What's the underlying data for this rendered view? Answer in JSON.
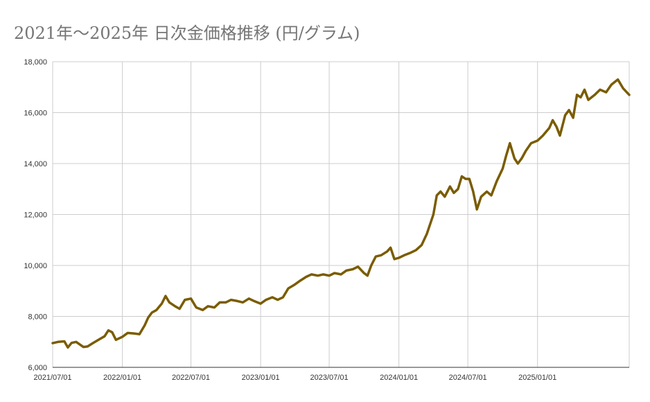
{
  "chart_data": {
    "type": "line",
    "title": "2021年〜2025年 日次金価格推移 (円/グラム)",
    "xlabel": "",
    "ylabel": "",
    "ylim": [
      6000,
      18000
    ],
    "y_ticks": [
      {
        "value": 6000,
        "label": "6,000"
      },
      {
        "value": 8000,
        "label": "8,000"
      },
      {
        "value": 10000,
        "label": "10,000"
      },
      {
        "value": 12000,
        "label": "12,000"
      },
      {
        "value": 14000,
        "label": "14,000"
      },
      {
        "value": 16000,
        "label": "16,000"
      },
      {
        "value": 18000,
        "label": "18,000"
      }
    ],
    "x_range": [
      "2021-07-01",
      "2025-08-31"
    ],
    "x_ticks": [
      {
        "value": "2021-07-01",
        "label": "2021/07/01"
      },
      {
        "value": "2022-01-01",
        "label": "2022/01/01"
      },
      {
        "value": "2022-07-01",
        "label": "2022/07/01"
      },
      {
        "value": "2023-01-01",
        "label": "2023/01/01"
      },
      {
        "value": "2023-07-01",
        "label": "2023/07/01"
      },
      {
        "value": "2024-01-01",
        "label": "2024/01/01"
      },
      {
        "value": "2024-07-01",
        "label": "2024/07/01"
      },
      {
        "value": "2025-01-01",
        "label": "2025/01/01"
      }
    ],
    "grid": true,
    "legend": "none",
    "series": [
      {
        "color": "#7a5c00",
        "points": [
          [
            "2021-07-01",
            6950
          ],
          [
            "2021-07-15",
            7000
          ],
          [
            "2021-08-01",
            7020
          ],
          [
            "2021-08-10",
            6780
          ],
          [
            "2021-08-20",
            6960
          ],
          [
            "2021-09-01",
            7000
          ],
          [
            "2021-09-20",
            6800
          ],
          [
            "2021-10-01",
            6820
          ],
          [
            "2021-10-15",
            6950
          ],
          [
            "2021-11-01",
            7100
          ],
          [
            "2021-11-15",
            7220
          ],
          [
            "2021-11-25",
            7450
          ],
          [
            "2021-12-05",
            7380
          ],
          [
            "2021-12-15",
            7080
          ],
          [
            "2022-01-01",
            7200
          ],
          [
            "2022-01-15",
            7350
          ],
          [
            "2022-02-01",
            7330
          ],
          [
            "2022-02-15",
            7300
          ],
          [
            "2022-03-01",
            7650
          ],
          [
            "2022-03-10",
            7950
          ],
          [
            "2022-03-20",
            8150
          ],
          [
            "2022-04-01",
            8250
          ],
          [
            "2022-04-15",
            8500
          ],
          [
            "2022-04-25",
            8800
          ],
          [
            "2022-05-05",
            8550
          ],
          [
            "2022-05-20",
            8400
          ],
          [
            "2022-06-01",
            8300
          ],
          [
            "2022-06-15",
            8650
          ],
          [
            "2022-07-01",
            8700
          ],
          [
            "2022-07-15",
            8350
          ],
          [
            "2022-08-01",
            8250
          ],
          [
            "2022-08-15",
            8400
          ],
          [
            "2022-09-01",
            8350
          ],
          [
            "2022-09-15",
            8550
          ],
          [
            "2022-10-01",
            8550
          ],
          [
            "2022-10-15",
            8650
          ],
          [
            "2022-11-01",
            8600
          ],
          [
            "2022-11-15",
            8550
          ],
          [
            "2022-12-01",
            8700
          ],
          [
            "2022-12-15",
            8600
          ],
          [
            "2023-01-01",
            8500
          ],
          [
            "2023-01-15",
            8650
          ],
          [
            "2023-02-01",
            8750
          ],
          [
            "2023-02-15",
            8650
          ],
          [
            "2023-03-01",
            8750
          ],
          [
            "2023-03-15",
            9100
          ],
          [
            "2023-04-01",
            9250
          ],
          [
            "2023-04-15",
            9400
          ],
          [
            "2023-05-01",
            9550
          ],
          [
            "2023-05-15",
            9650
          ],
          [
            "2023-06-01",
            9600
          ],
          [
            "2023-06-15",
            9650
          ],
          [
            "2023-07-01",
            9600
          ],
          [
            "2023-07-15",
            9700
          ],
          [
            "2023-08-01",
            9650
          ],
          [
            "2023-08-15",
            9800
          ],
          [
            "2023-09-01",
            9850
          ],
          [
            "2023-09-15",
            9950
          ],
          [
            "2023-10-01",
            9700
          ],
          [
            "2023-10-10",
            9600
          ],
          [
            "2023-10-20",
            10000
          ],
          [
            "2023-11-01",
            10350
          ],
          [
            "2023-11-15",
            10400
          ],
          [
            "2023-12-01",
            10550
          ],
          [
            "2023-12-10",
            10700
          ],
          [
            "2023-12-20",
            10250
          ],
          [
            "2024-01-01",
            10300
          ],
          [
            "2024-01-15",
            10400
          ],
          [
            "2024-02-01",
            10500
          ],
          [
            "2024-02-15",
            10600
          ],
          [
            "2024-03-01",
            10800
          ],
          [
            "2024-03-15",
            11250
          ],
          [
            "2024-04-01",
            12000
          ],
          [
            "2024-04-10",
            12750
          ],
          [
            "2024-04-20",
            12900
          ],
          [
            "2024-05-01",
            12700
          ],
          [
            "2024-05-15",
            13100
          ],
          [
            "2024-05-25",
            12850
          ],
          [
            "2024-06-05",
            13000
          ],
          [
            "2024-06-15",
            13500
          ],
          [
            "2024-06-25",
            13400
          ],
          [
            "2024-07-05",
            13400
          ],
          [
            "2024-07-15",
            12900
          ],
          [
            "2024-07-25",
            12200
          ],
          [
            "2024-08-05",
            12700
          ],
          [
            "2024-08-20",
            12900
          ],
          [
            "2024-09-01",
            12750
          ],
          [
            "2024-09-15",
            13300
          ],
          [
            "2024-10-01",
            13800
          ],
          [
            "2024-10-10",
            14300
          ],
          [
            "2024-10-20",
            14800
          ],
          [
            "2024-11-01",
            14200
          ],
          [
            "2024-11-10",
            14000
          ],
          [
            "2024-11-20",
            14200
          ],
          [
            "2024-12-01",
            14500
          ],
          [
            "2024-12-15",
            14800
          ],
          [
            "2025-01-01",
            14900
          ],
          [
            "2025-01-15",
            15100
          ],
          [
            "2025-02-01",
            15400
          ],
          [
            "2025-02-10",
            15700
          ],
          [
            "2025-02-20",
            15450
          ],
          [
            "2025-03-01",
            15100
          ],
          [
            "2025-03-15",
            15900
          ],
          [
            "2025-03-25",
            16100
          ],
          [
            "2025-04-05",
            15800
          ],
          [
            "2025-04-15",
            16700
          ],
          [
            "2025-04-25",
            16600
          ],
          [
            "2025-05-05",
            16900
          ],
          [
            "2025-05-15",
            16500
          ],
          [
            "2025-06-01",
            16700
          ],
          [
            "2025-06-15",
            16900
          ],
          [
            "2025-07-01",
            16800
          ],
          [
            "2025-07-15",
            17100
          ],
          [
            "2025-08-01",
            17300
          ],
          [
            "2025-08-15",
            16950
          ],
          [
            "2025-08-31",
            16700
          ]
        ]
      }
    ]
  }
}
